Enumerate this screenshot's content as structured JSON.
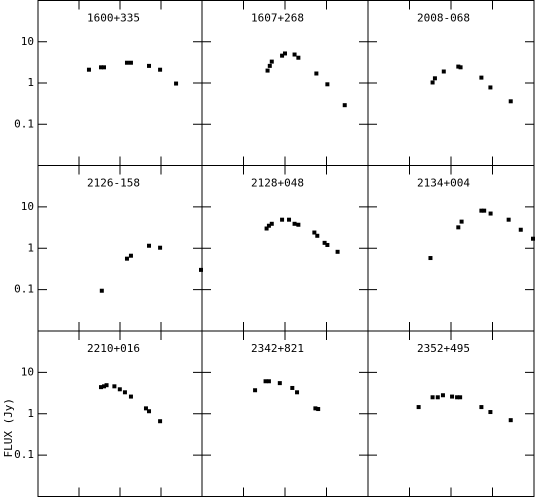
{
  "chart_data": [
    {
      "type": "scatter",
      "title": "1600+335",
      "xscale": "log",
      "yscale": "log",
      "xlim": [
        0.1,
        1000
      ],
      "ylim": [
        0.01,
        100
      ],
      "xticks": [
        0.1,
        1,
        10,
        100,
        1000
      ],
      "yticks": [
        0.1,
        1,
        10
      ],
      "color": "#000000",
      "x": [
        1.75,
        3.44,
        4.07,
        14.8,
        18.5,
        51,
        95,
        233
      ],
      "values": [
        2.1,
        2.4,
        2.4,
        3.1,
        3.1,
        2.6,
        2.1,
        0.97
      ]
    },
    {
      "type": "scatter",
      "title": "1607+268",
      "xscale": "log",
      "yscale": "log",
      "xlim": [
        0.1,
        1000
      ],
      "ylim": [
        0.01,
        100
      ],
      "xticks": [
        0.1,
        1,
        10,
        100,
        1000
      ],
      "yticks": [
        0.1,
        1,
        10
      ],
      "color": "#000000",
      "x": [
        3.8,
        4.3,
        4.8,
        8.5,
        10,
        17,
        21,
        57,
        105,
        275
      ],
      "values": [
        2.0,
        2.6,
        3.3,
        4.6,
        5.2,
        4.9,
        4.1,
        1.7,
        0.93,
        0.29
      ]
    },
    {
      "type": "scatter",
      "title": "2008-068",
      "xscale": "log",
      "yscale": "log",
      "xlim": [
        0.1,
        1000
      ],
      "ylim": [
        0.01,
        100
      ],
      "xticks": [
        0.1,
        1,
        10,
        100,
        1000
      ],
      "yticks": [
        0.1,
        1,
        10
      ],
      "color": "#000000",
      "x": [
        3.6,
        4.1,
        6.7,
        15,
        17,
        54,
        89,
        275
      ],
      "values": [
        1.03,
        1.3,
        1.9,
        2.5,
        2.4,
        1.35,
        0.78,
        0.36
      ]
    },
    {
      "type": "scatter",
      "title": "2126-158",
      "xscale": "log",
      "yscale": "log",
      "xlim": [
        0.1,
        1000
      ],
      "ylim": [
        0.01,
        100
      ],
      "xticks": [
        0.1,
        1,
        10,
        100,
        1000
      ],
      "yticks": [
        0.1,
        1,
        10
      ],
      "color": "#000000",
      "x": [
        3.6,
        14.8,
        18.5,
        51,
        95,
        980
      ],
      "values": [
        0.094,
        0.56,
        0.66,
        1.15,
        1.03,
        0.3
      ]
    },
    {
      "type": "scatter",
      "title": "2128+048",
      "xscale": "log",
      "yscale": "log",
      "xlim": [
        0.1,
        1000
      ],
      "ylim": [
        0.01,
        100
      ],
      "xticks": [
        0.1,
        1,
        10,
        100,
        1000
      ],
      "yticks": [
        0.1,
        1,
        10
      ],
      "color": "#000000",
      "x": [
        3.6,
        4.1,
        4.8,
        8.5,
        12.5,
        17,
        21,
        51,
        60,
        90,
        105,
        185
      ],
      "values": [
        3.0,
        3.5,
        3.9,
        4.9,
        4.9,
        3.9,
        3.7,
        2.4,
        2.0,
        1.35,
        1.2,
        0.82
      ]
    },
    {
      "type": "scatter",
      "title": "2134+004",
      "xscale": "log",
      "yscale": "log",
      "xlim": [
        0.1,
        1000
      ],
      "ylim": [
        0.01,
        100
      ],
      "xticks": [
        0.1,
        1,
        10,
        100,
        1000
      ],
      "yticks": [
        0.1,
        1,
        10
      ],
      "color": "#000000",
      "x": [
        3.2,
        15,
        18,
        54,
        63,
        90,
        245,
        480,
        990
      ],
      "values": [
        0.58,
        3.2,
        4.4,
        8.1,
        8.1,
        6.9,
        4.9,
        2.8,
        1.7
      ]
    },
    {
      "type": "scatter",
      "title": "2210+016",
      "ylabel": "FLUX (Jy)",
      "xscale": "log",
      "yscale": "log",
      "xlim": [
        0.1,
        1000
      ],
      "ylim": [
        0.01,
        100
      ],
      "xticks": [
        0.1,
        1,
        10,
        100,
        1000
      ],
      "yticks": [
        0.1,
        1,
        10
      ],
      "color": "#000000",
      "x": [
        3.44,
        4.07,
        4.7,
        7.3,
        9.9,
        13.2,
        18.5,
        43,
        51,
        95
      ],
      "values": [
        4.4,
        4.6,
        4.9,
        4.6,
        3.9,
        3.3,
        2.6,
        1.35,
        1.15,
        0.66
      ]
    },
    {
      "type": "scatter",
      "title": "2342+821",
      "xscale": "log",
      "yscale": "log",
      "xlim": [
        0.1,
        1000
      ],
      "ylim": [
        0.01,
        100
      ],
      "xticks": [
        0.1,
        1,
        10,
        100,
        1000
      ],
      "yticks": [
        0.1,
        1,
        10
      ],
      "color": "#000000",
      "x": [
        1.9,
        3.4,
        4.1,
        7.5,
        15,
        19.5,
        54,
        63
      ],
      "values": [
        3.7,
        6.1,
        6.1,
        5.5,
        4.2,
        3.3,
        1.35,
        1.3
      ]
    },
    {
      "type": "scatter",
      "title": "2352+495",
      "xscale": "log",
      "yscale": "log",
      "xlim": [
        0.1,
        1000
      ],
      "ylim": [
        0.01,
        100
      ],
      "xticks": [
        0.1,
        1,
        10,
        100,
        1000
      ],
      "yticks": [
        0.1,
        1,
        10
      ],
      "color": "#000000",
      "x": [
        1.66,
        3.6,
        4.8,
        6.4,
        10.6,
        14,
        16.6,
        54,
        89,
        275
      ],
      "values": [
        1.45,
        2.5,
        2.5,
        2.8,
        2.6,
        2.5,
        2.5,
        1.45,
        1.1,
        0.7
      ]
    }
  ]
}
